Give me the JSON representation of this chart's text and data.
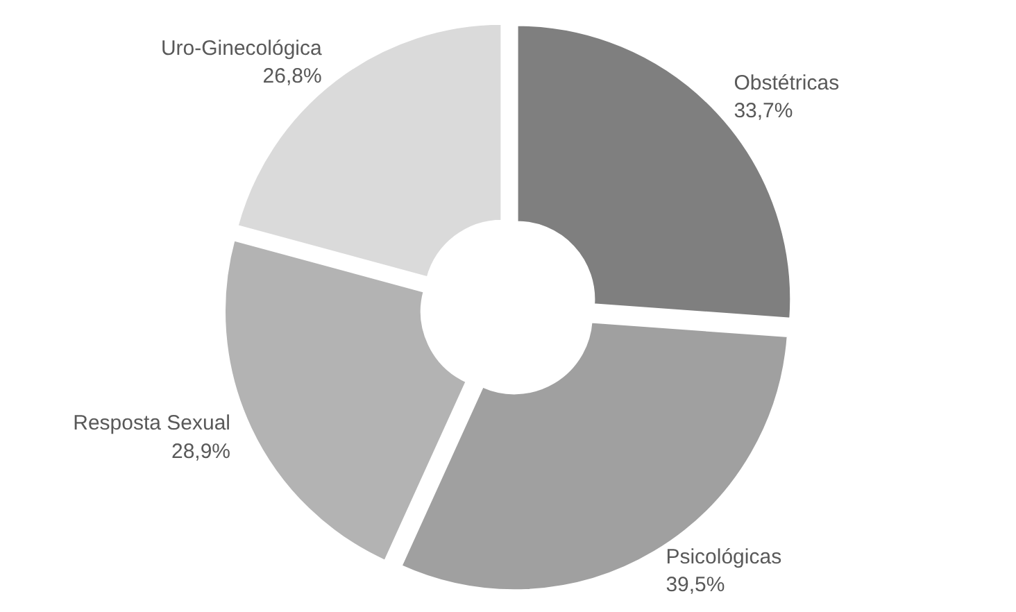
{
  "chart_data": {
    "type": "donut",
    "categories": [
      "Obstétricas",
      "Psicológicas",
      "Resposta Sexual",
      "Uro-Ginecológica"
    ],
    "values": [
      33.7,
      39.5,
      28.9,
      26.8
    ],
    "value_labels": [
      "33,7%",
      "39,5%",
      "28,9%",
      "26,8%"
    ],
    "colors": [
      "#7f7f7f",
      "#a0a0a0",
      "#b3b3b3",
      "#dadada"
    ]
  }
}
